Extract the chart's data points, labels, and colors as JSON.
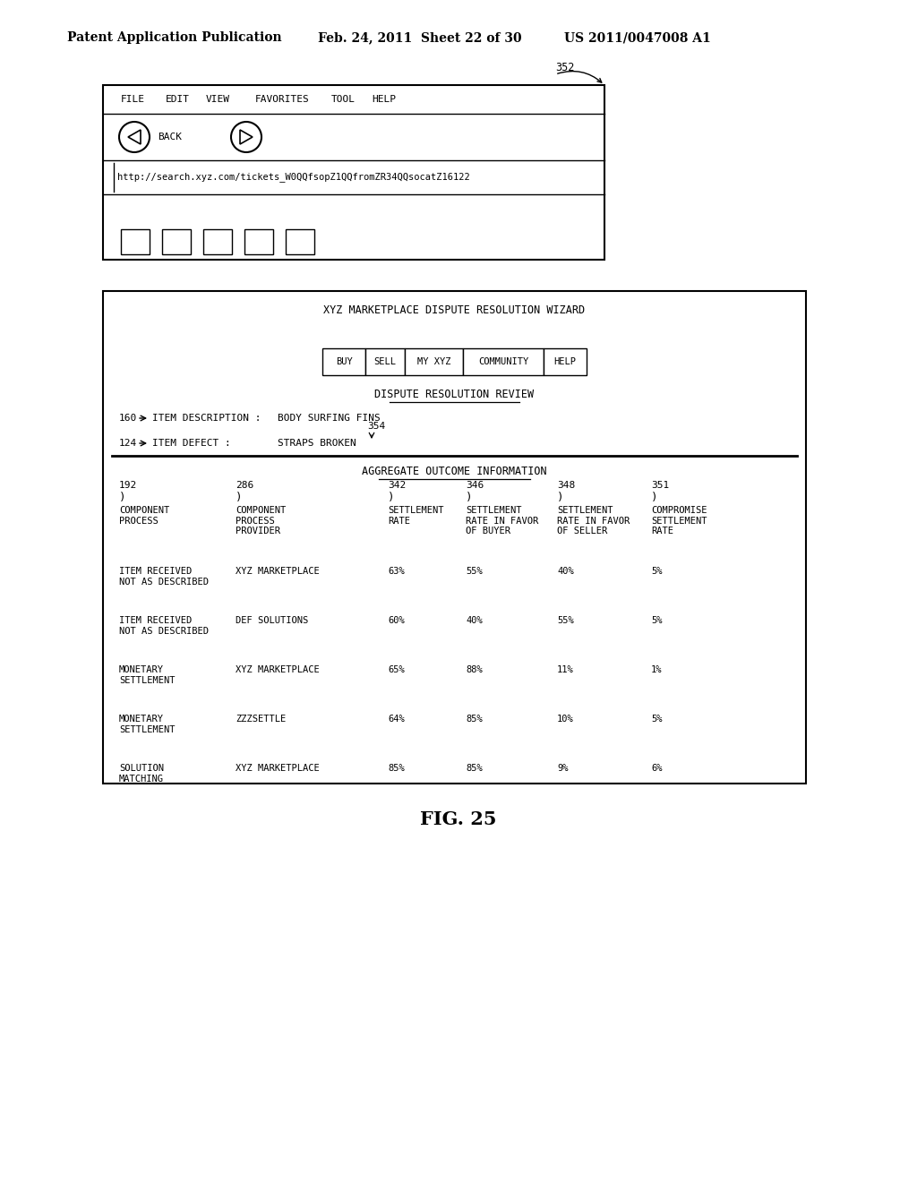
{
  "bg_color": "#ffffff",
  "header_left": "Patent Application Publication",
  "header_mid": "Feb. 24, 2011  Sheet 22 of 30",
  "header_right": "US 2011/0047008 A1",
  "fig_label": "FIG. 25",
  "browser_label": "352",
  "browser_menu": [
    "FILE",
    "EDIT",
    "VIEW",
    "FAVORITES",
    "TOOL",
    "HELP"
  ],
  "browser_url": "http://search.xyz.com/tickets_W0QQfsopZ1QQfromZR34QQsocatZ16122",
  "wizard_title": "XYZ MARKETPLACE DISPUTE RESOLUTION WIZARD",
  "nav_tabs": [
    "BUY",
    "SELL",
    "MY XYZ",
    "COMMUNITY",
    "HELP"
  ],
  "section_title": "DISPUTE RESOLUTION REVIEW",
  "item_desc_label": "160",
  "item_desc_text": "ITEM DESCRIPTION :",
  "item_desc_value": "BODY SURFING FINS",
  "item_defect_label": "124",
  "item_defect_text": "ITEM DEFECT :",
  "item_defect_value": "STRAPS BROKEN",
  "ref_354": "354",
  "table_title": "AGGREGATE OUTCOME INFORMATION",
  "col_refs": [
    "192",
    "286",
    "342",
    "346",
    "348",
    "351"
  ],
  "col_headers": [
    "COMPONENT\nPROCESS",
    "COMPONENT\nPROCESS\nPROVIDER",
    "SETTLEMENT\nRATE",
    "SETTLEMENT\nRATE IN FAVOR\nOF BUYER",
    "SETTLEMENT\nRATE IN FAVOR\nOF SELLER",
    "COMPROMISE\nSETTLEMENT\nRATE"
  ],
  "rows": [
    [
      "ITEM RECEIVED\nNOT AS DESCRIBED",
      "XYZ MARKETPLACE",
      "63%",
      "55%",
      "40%",
      "5%"
    ],
    [
      "ITEM RECEIVED\nNOT AS DESCRIBED",
      "DEF SOLUTIONS",
      "60%",
      "40%",
      "55%",
      "5%"
    ],
    [
      "MONETARY\nSETTLEMENT",
      "XYZ MARKETPLACE",
      "65%",
      "88%",
      "11%",
      "1%"
    ],
    [
      "MONETARY\nSETTLEMENT",
      "ZZZSETTLE",
      "64%",
      "85%",
      "10%",
      "5%"
    ],
    [
      "SOLUTION\nMATCHING",
      "XYZ MARKETPLACE",
      "85%",
      "85%",
      "9%",
      "6%"
    ]
  ]
}
